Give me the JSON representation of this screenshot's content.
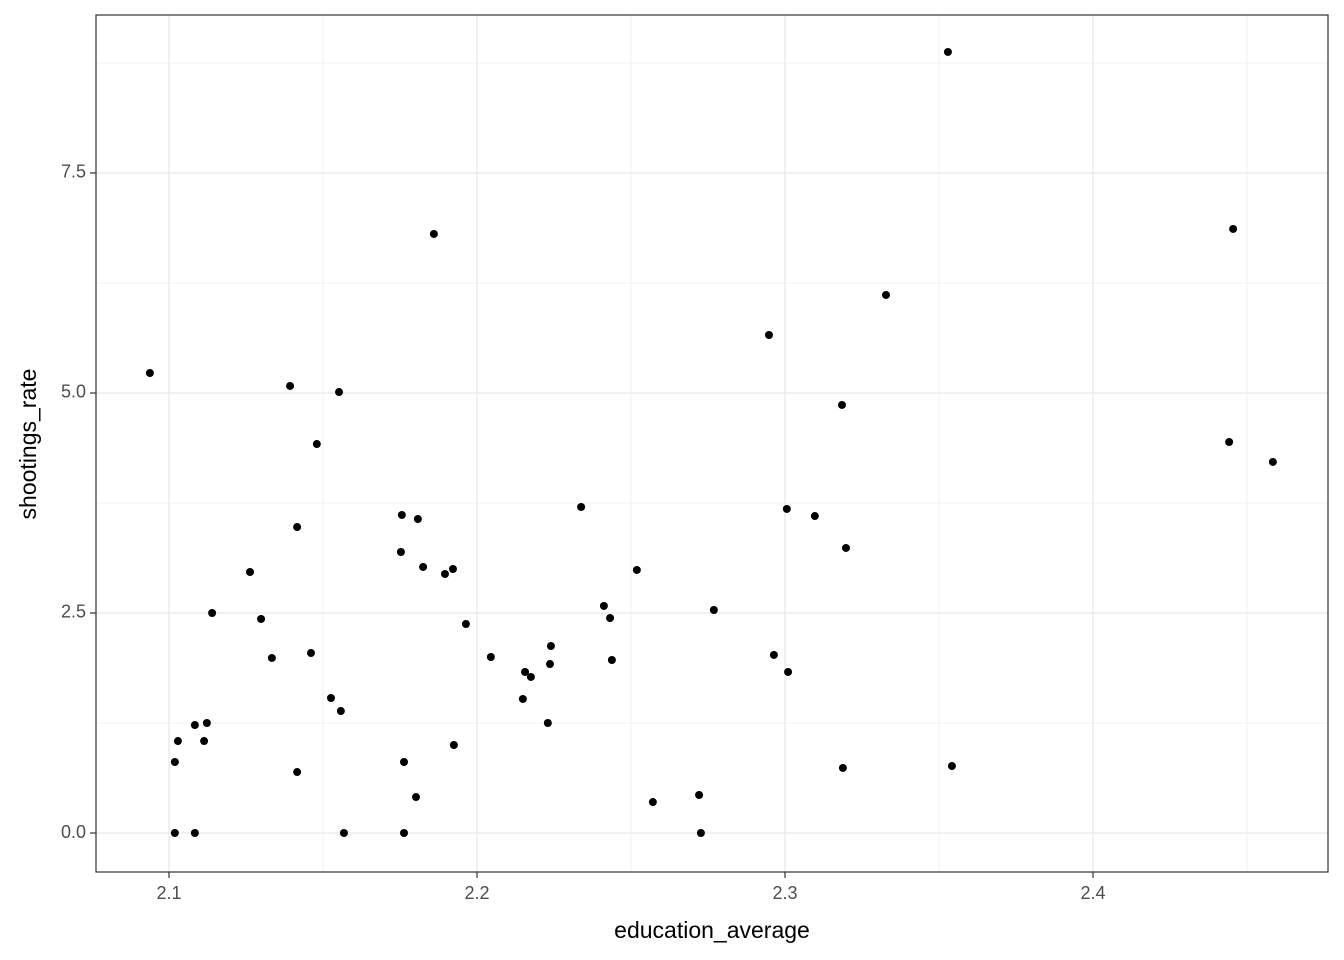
{
  "chart_data": {
    "type": "scatter",
    "x_label": "education_average",
    "y_label": "shootings_rate",
    "color": "#000000",
    "grid": true,
    "xlim": [
      2.0763,
      2.4763
    ],
    "ylim": [
      -0.443,
      9.295
    ],
    "xticks": [
      2.1,
      2.2,
      2.3,
      2.4
    ],
    "yticks": [
      {
        "value": 0,
        "label": "0.0"
      },
      2.5,
      {
        "value": 5,
        "label": "5.0"
      },
      7.5
    ],
    "x": [
      2.0938,
      2.1019,
      2.1019,
      2.1029,
      2.1084,
      2.1084,
      2.1114,
      2.1123,
      2.114,
      2.1263,
      2.1299,
      2.1334,
      2.1393,
      2.1416,
      2.1416,
      2.1461,
      2.148,
      2.1526,
      2.1552,
      2.1558,
      2.1568,
      2.1753,
      2.1756,
      2.1763,
      2.1763,
      2.1802,
      2.1808,
      2.1825,
      2.186,
      2.1896,
      2.1922,
      2.1925,
      2.1964,
      2.2045,
      2.2149,
      2.2156,
      2.2175,
      2.223,
      2.2237,
      2.224,
      2.2338,
      2.2412,
      2.2432,
      2.2438,
      2.2519,
      2.2571,
      2.2721,
      2.2727,
      2.2769,
      2.2948,
      2.2964,
      2.3006,
      2.301,
      2.3097,
      2.3185,
      2.3188,
      2.3198,
      2.3328,
      2.3529,
      2.3542,
      2.4442,
      2.4455,
      2.4584
    ],
    "values": [
      5.227,
      0.807,
      0,
      1.045,
      0,
      1.227,
      1.045,
      1.25,
      2.5,
      2.966,
      2.432,
      1.989,
      5.08,
      3.477,
      0.693,
      2.045,
      4.42,
      1.534,
      5.011,
      1.386,
      0,
      3.193,
      3.614,
      0.807,
      0,
      0.409,
      3.568,
      3.023,
      6.807,
      2.943,
      3.0,
      1.0,
      2.375,
      2.0,
      1.523,
      1.83,
      1.773,
      1.25,
      1.92,
      2.125,
      3.705,
      2.58,
      2.443,
      1.966,
      2.989,
      0.352,
      0.432,
      0,
      2.534,
      5.659,
      2.023,
      3.682,
      1.83,
      3.602,
      4.864,
      0.739,
      3.239,
      6.114,
      8.875,
      0.761,
      4.443,
      6.864,
      4.216
    ]
  }
}
